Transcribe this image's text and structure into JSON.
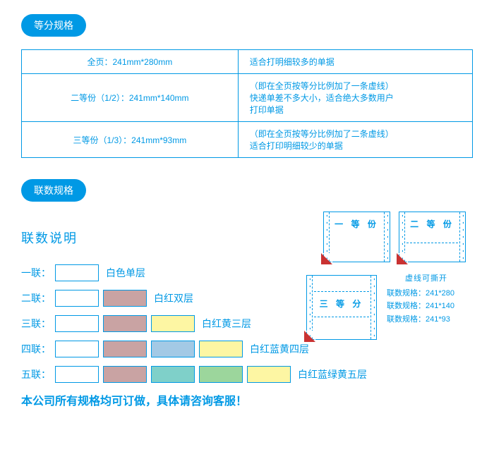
{
  "pill1": "等分规格",
  "table": {
    "rows": [
      {
        "left": "全页：241mm*280mm",
        "right": "适合打明细较多的单据"
      },
      {
        "left": "二等份（1/2）：241mm*140mm",
        "right": "（即在全页按等分比例加了一条虚线）\n快递单差不多大小，适合绝大多数用户\n打印单据"
      },
      {
        "left": "三等份（1/3）：241mm*93mm",
        "right": "（即在全页按等分比例加了二条虚线）\n适合打印明细较少的单据"
      }
    ]
  },
  "pill2": "联数规格",
  "subtitle": "联数说明",
  "layers": [
    {
      "label": "一联：",
      "colors": [
        "#ffffff"
      ],
      "desc": "白色单层"
    },
    {
      "label": "二联：",
      "colors": [
        "#ffffff",
        "#c9a3a3"
      ],
      "desc": "白红双层"
    },
    {
      "label": "三联：",
      "colors": [
        "#ffffff",
        "#c9a3a3",
        "#fdf6a3"
      ],
      "desc": "白红黄三层"
    },
    {
      "label": "四联：",
      "colors": [
        "#ffffff",
        "#c9a3a3",
        "#a3c9e5",
        "#fdf6a3"
      ],
      "desc": "白红蓝黄四层"
    },
    {
      "label": "五联：",
      "colors": [
        "#ffffff",
        "#c9a3a3",
        "#7fd0c9",
        "#9cd69c",
        "#fdf6a3"
      ],
      "desc": "白红蓝绿黄五层"
    }
  ],
  "footer": "本公司所有规格均可订做，具体请咨询客服！",
  "illus": {
    "p1": "一 等 份",
    "p2": "二 等 份",
    "p3": "三 等 分",
    "side": {
      "t": "虚线可撕开",
      "l1": "联数规格：241*280",
      "l2": "联数规格：241*140",
      "l3": "联数规格：241*93"
    }
  }
}
